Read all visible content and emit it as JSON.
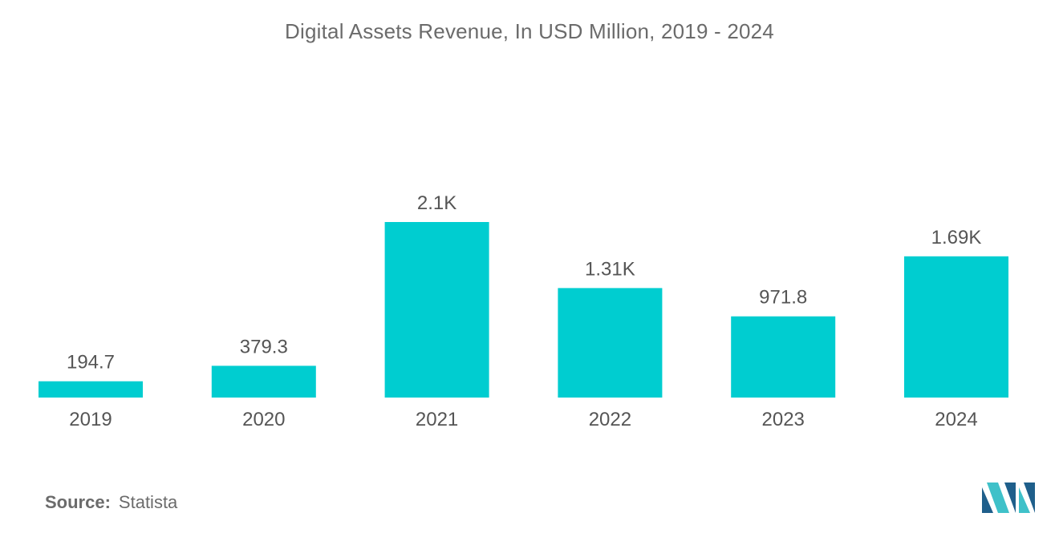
{
  "source": {
    "label": "Source:",
    "value": "Statista"
  },
  "colors": {
    "bar": "#00cdd0",
    "text": "#555555",
    "title": "#6b6b6b",
    "logo_dark": "#1f5f8b",
    "logo_light": "#3fc1c9"
  },
  "logo": {
    "icon": "mordor-intelligence-logo"
  },
  "chart_data": {
    "type": "bar",
    "title": "Digital Assets Revenue, In USD Million, 2019 - 2024",
    "xlabel": "",
    "ylabel": "",
    "categories": [
      "2019",
      "2020",
      "2021",
      "2022",
      "2023",
      "2024"
    ],
    "values": [
      194.7,
      379.3,
      2100,
      1310,
      971.8,
      1690
    ],
    "data_labels": [
      "194.7",
      "379.3",
      "2.1K",
      "1.31K",
      "971.8",
      "1.69K"
    ],
    "ylim": [
      0,
      2100
    ],
    "grid": false,
    "legend": "none"
  }
}
